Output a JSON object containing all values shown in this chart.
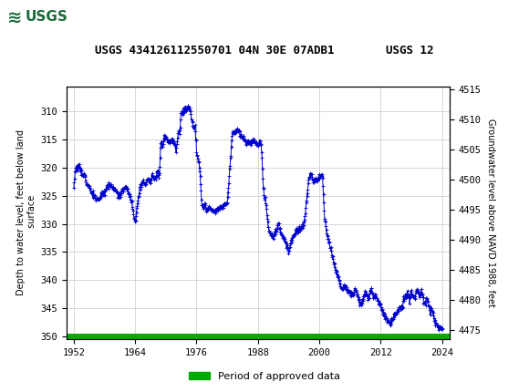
{
  "title_left": "USGS 434126112550701 04N 30E 07ADB1",
  "title_right": "USGS 12",
  "ylabel_left": "Depth to water level, feet below land\n surface",
  "ylabel_right": "Groundwater level above NAVD 1988, feet",
  "ylim_left": [
    350.5,
    305.5
  ],
  "ylim_right": [
    4473.5,
    4515.5
  ],
  "yticks_left": [
    310,
    315,
    320,
    325,
    330,
    335,
    340,
    345,
    350
  ],
  "yticks_right": [
    4475,
    4480,
    4485,
    4490,
    4495,
    4500,
    4505,
    4510,
    4515
  ],
  "xlim": [
    1950.5,
    2025.5
  ],
  "xticks": [
    1952,
    1964,
    1976,
    1988,
    2000,
    2012,
    2024
  ],
  "line_color": "#0000CC",
  "green_line_color": "#00AA00",
  "legend_label": "Period of approved data",
  "header_bg_color": "#1B6B3A",
  "background_color": "#ffffff",
  "grid_color": "#c8c8c8",
  "keypoints": [
    [
      1952.0,
      323.5
    ],
    [
      1952.3,
      320.5
    ],
    [
      1952.7,
      319.8
    ],
    [
      1953.0,
      319.5
    ],
    [
      1953.5,
      321.0
    ],
    [
      1954.0,
      321.5
    ],
    [
      1954.5,
      323.0
    ],
    [
      1955.0,
      323.5
    ],
    [
      1955.5,
      324.5
    ],
    [
      1956.0,
      325.0
    ],
    [
      1956.5,
      325.5
    ],
    [
      1957.0,
      325.5
    ],
    [
      1957.5,
      324.5
    ],
    [
      1958.0,
      324.5
    ],
    [
      1958.5,
      323.5
    ],
    [
      1959.0,
      323.0
    ],
    [
      1959.5,
      323.5
    ],
    [
      1960.0,
      324.0
    ],
    [
      1960.5,
      324.5
    ],
    [
      1961.0,
      325.0
    ],
    [
      1961.5,
      324.0
    ],
    [
      1962.0,
      323.5
    ],
    [
      1962.5,
      324.0
    ],
    [
      1963.0,
      325.0
    ],
    [
      1963.5,
      327.0
    ],
    [
      1964.0,
      330.0
    ],
    [
      1964.5,
      326.0
    ],
    [
      1965.0,
      323.5
    ],
    [
      1965.5,
      322.5
    ],
    [
      1966.0,
      323.0
    ],
    [
      1966.5,
      322.0
    ],
    [
      1967.0,
      322.5
    ],
    [
      1967.3,
      321.5
    ],
    [
      1967.7,
      322.0
    ],
    [
      1968.0,
      322.0
    ],
    [
      1968.3,
      320.5
    ],
    [
      1968.7,
      321.5
    ],
    [
      1969.0,
      315.5
    ],
    [
      1969.3,
      316.5
    ],
    [
      1969.7,
      314.5
    ],
    [
      1970.0,
      314.5
    ],
    [
      1970.3,
      315.5
    ],
    [
      1970.7,
      315.0
    ],
    [
      1971.0,
      315.0
    ],
    [
      1971.3,
      315.5
    ],
    [
      1971.7,
      315.5
    ],
    [
      1972.0,
      317.0
    ],
    [
      1972.3,
      315.0
    ],
    [
      1972.5,
      313.5
    ],
    [
      1972.7,
      314.0
    ],
    [
      1973.0,
      310.0
    ],
    [
      1973.3,
      310.5
    ],
    [
      1973.5,
      309.5
    ],
    [
      1973.7,
      309.8
    ],
    [
      1974.0,
      309.5
    ],
    [
      1974.3,
      309.0
    ],
    [
      1974.5,
      309.3
    ],
    [
      1974.7,
      309.5
    ],
    [
      1975.0,
      311.5
    ],
    [
      1975.3,
      312.5
    ],
    [
      1975.5,
      313.0
    ],
    [
      1975.7,
      312.5
    ],
    [
      1976.0,
      317.0
    ],
    [
      1976.3,
      318.5
    ],
    [
      1976.5,
      319.0
    ],
    [
      1976.7,
      321.0
    ],
    [
      1977.0,
      326.5
    ],
    [
      1977.3,
      327.0
    ],
    [
      1977.7,
      326.5
    ],
    [
      1978.0,
      327.5
    ],
    [
      1978.5,
      327.0
    ],
    [
      1979.0,
      327.5
    ],
    [
      1979.5,
      327.5
    ],
    [
      1980.0,
      327.5
    ],
    [
      1980.5,
      327.0
    ],
    [
      1981.0,
      327.0
    ],
    [
      1981.5,
      326.5
    ],
    [
      1982.0,
      326.5
    ],
    [
      1982.3,
      323.0
    ],
    [
      1982.5,
      320.0
    ],
    [
      1982.7,
      318.0
    ],
    [
      1983.0,
      313.5
    ],
    [
      1983.3,
      314.0
    ],
    [
      1983.5,
      313.5
    ],
    [
      1983.7,
      313.5
    ],
    [
      1984.0,
      313.0
    ],
    [
      1984.3,
      313.5
    ],
    [
      1984.5,
      314.0
    ],
    [
      1984.7,
      314.0
    ],
    [
      1985.0,
      314.5
    ],
    [
      1985.3,
      315.0
    ],
    [
      1985.5,
      315.5
    ],
    [
      1985.7,
      315.5
    ],
    [
      1986.0,
      315.5
    ],
    [
      1986.3,
      315.5
    ],
    [
      1986.5,
      315.5
    ],
    [
      1986.7,
      315.5
    ],
    [
      1987.0,
      315.0
    ],
    [
      1987.3,
      315.5
    ],
    [
      1987.5,
      315.5
    ],
    [
      1987.7,
      315.5
    ],
    [
      1988.0,
      316.0
    ],
    [
      1988.3,
      315.5
    ],
    [
      1988.5,
      315.5
    ],
    [
      1988.7,
      316.5
    ],
    [
      1989.0,
      323.0
    ],
    [
      1989.3,
      325.5
    ],
    [
      1989.5,
      326.0
    ],
    [
      1989.7,
      327.5
    ],
    [
      1990.0,
      330.5
    ],
    [
      1990.3,
      331.5
    ],
    [
      1990.5,
      332.0
    ],
    [
      1990.7,
      332.0
    ],
    [
      1991.0,
      332.5
    ],
    [
      1991.3,
      331.5
    ],
    [
      1991.5,
      331.0
    ],
    [
      1991.7,
      330.5
    ],
    [
      1992.0,
      330.0
    ],
    [
      1992.3,
      331.0
    ],
    [
      1992.5,
      331.5
    ],
    [
      1992.7,
      332.0
    ],
    [
      1993.0,
      332.5
    ],
    [
      1993.3,
      333.0
    ],
    [
      1993.5,
      333.5
    ],
    [
      1993.7,
      334.0
    ],
    [
      1994.0,
      335.0
    ],
    [
      1994.3,
      333.5
    ],
    [
      1994.5,
      333.0
    ],
    [
      1994.7,
      332.5
    ],
    [
      1995.0,
      332.0
    ],
    [
      1995.3,
      331.5
    ],
    [
      1995.5,
      331.0
    ],
    [
      1995.7,
      331.0
    ],
    [
      1996.0,
      331.5
    ],
    [
      1996.3,
      331.0
    ],
    [
      1996.5,
      330.5
    ],
    [
      1996.7,
      330.5
    ],
    [
      1997.0,
      330.0
    ],
    [
      1997.3,
      328.0
    ],
    [
      1997.5,
      326.0
    ],
    [
      1997.7,
      324.0
    ],
    [
      1998.0,
      321.5
    ],
    [
      1998.3,
      321.0
    ],
    [
      1998.5,
      321.5
    ],
    [
      1998.7,
      322.0
    ],
    [
      1999.0,
      322.5
    ],
    [
      1999.3,
      322.0
    ],
    [
      1999.5,
      322.5
    ],
    [
      1999.7,
      322.0
    ],
    [
      2000.0,
      322.0
    ],
    [
      2000.3,
      321.5
    ],
    [
      2000.5,
      321.5
    ],
    [
      2000.7,
      322.5
    ],
    [
      2001.0,
      328.5
    ],
    [
      2001.3,
      330.5
    ],
    [
      2001.5,
      332.0
    ],
    [
      2001.7,
      333.0
    ],
    [
      2002.0,
      333.5
    ],
    [
      2002.3,
      334.5
    ],
    [
      2002.5,
      335.5
    ],
    [
      2002.7,
      336.0
    ],
    [
      2003.0,
      337.5
    ],
    [
      2003.3,
      338.5
    ],
    [
      2003.5,
      339.0
    ],
    [
      2003.7,
      339.5
    ],
    [
      2004.0,
      340.5
    ],
    [
      2004.3,
      341.0
    ],
    [
      2004.5,
      341.5
    ],
    [
      2004.7,
      341.5
    ],
    [
      2005.0,
      341.0
    ],
    [
      2005.3,
      341.5
    ],
    [
      2005.5,
      342.0
    ],
    [
      2005.7,
      342.0
    ],
    [
      2006.0,
      342.0
    ],
    [
      2006.3,
      342.5
    ],
    [
      2006.5,
      342.5
    ],
    [
      2006.7,
      342.5
    ],
    [
      2007.0,
      341.5
    ],
    [
      2007.3,
      342.0
    ],
    [
      2007.5,
      343.0
    ],
    [
      2007.7,
      343.5
    ],
    [
      2008.0,
      344.5
    ],
    [
      2008.3,
      344.0
    ],
    [
      2008.5,
      343.5
    ],
    [
      2008.7,
      343.0
    ],
    [
      2009.0,
      342.0
    ],
    [
      2009.3,
      342.5
    ],
    [
      2009.5,
      343.0
    ],
    [
      2009.7,
      343.0
    ],
    [
      2010.0,
      341.5
    ],
    [
      2010.3,
      342.0
    ],
    [
      2010.5,
      342.5
    ],
    [
      2010.7,
      343.0
    ],
    [
      2011.0,
      342.5
    ],
    [
      2011.3,
      343.5
    ],
    [
      2011.5,
      344.0
    ],
    [
      2011.7,
      344.5
    ],
    [
      2012.0,
      344.5
    ],
    [
      2012.3,
      345.5
    ],
    [
      2012.5,
      346.0
    ],
    [
      2012.7,
      346.5
    ],
    [
      2013.0,
      346.5
    ],
    [
      2013.3,
      347.0
    ],
    [
      2013.5,
      347.5
    ],
    [
      2013.7,
      347.5
    ],
    [
      2014.0,
      347.5
    ],
    [
      2014.3,
      347.0
    ],
    [
      2014.5,
      346.5
    ],
    [
      2014.7,
      346.0
    ],
    [
      2015.0,
      346.0
    ],
    [
      2015.3,
      345.5
    ],
    [
      2015.5,
      345.0
    ],
    [
      2015.7,
      344.5
    ],
    [
      2016.0,
      345.0
    ],
    [
      2016.3,
      344.5
    ],
    [
      2016.5,
      343.5
    ],
    [
      2016.7,
      343.0
    ],
    [
      2017.0,
      342.5
    ],
    [
      2017.3,
      342.5
    ],
    [
      2017.5,
      343.0
    ],
    [
      2017.7,
      343.5
    ],
    [
      2018.0,
      342.0
    ],
    [
      2018.3,
      342.5
    ],
    [
      2018.5,
      343.0
    ],
    [
      2018.7,
      343.5
    ],
    [
      2019.0,
      341.5
    ],
    [
      2019.3,
      342.0
    ],
    [
      2019.5,
      342.5
    ],
    [
      2019.7,
      343.0
    ],
    [
      2020.0,
      342.0
    ],
    [
      2020.3,
      343.0
    ],
    [
      2020.5,
      344.0
    ],
    [
      2020.7,
      344.5
    ],
    [
      2021.0,
      343.0
    ],
    [
      2021.3,
      344.0
    ],
    [
      2021.5,
      345.0
    ],
    [
      2021.7,
      346.0
    ],
    [
      2022.0,
      345.0
    ],
    [
      2022.3,
      346.0
    ],
    [
      2022.5,
      347.0
    ],
    [
      2022.7,
      347.5
    ],
    [
      2023.0,
      348.0
    ],
    [
      2023.3,
      348.5
    ],
    [
      2023.5,
      348.5
    ],
    [
      2023.7,
      348.5
    ],
    [
      2024.0,
      348.5
    ]
  ]
}
